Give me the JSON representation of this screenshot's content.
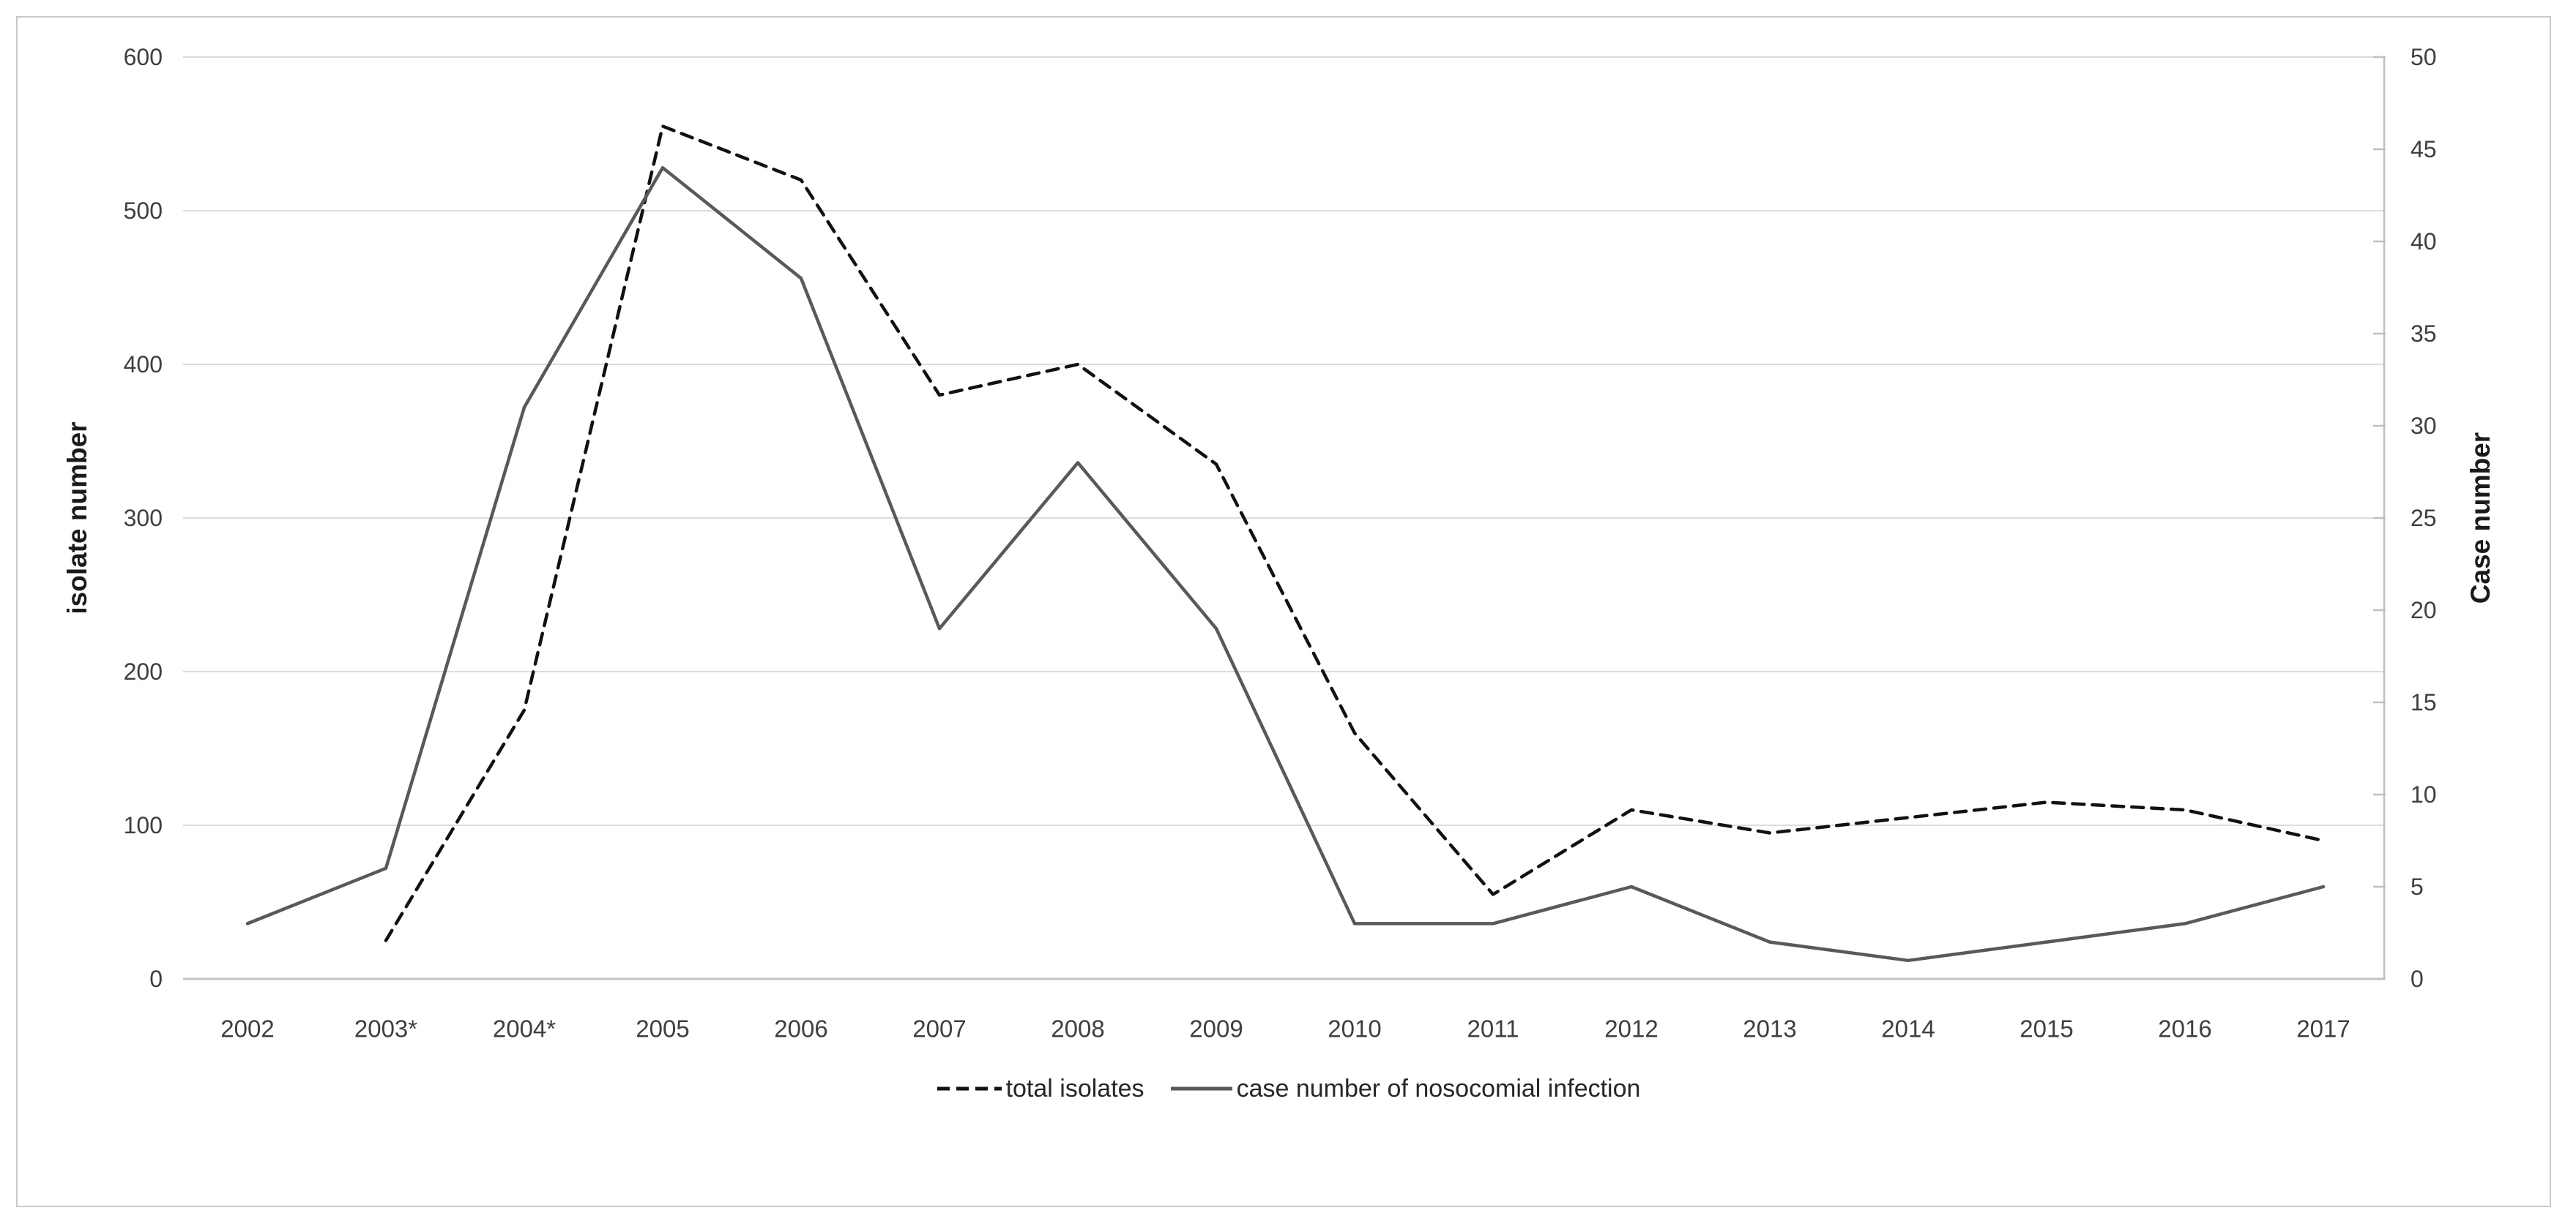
{
  "figure": {
    "legend": {
      "items": [
        {
          "label": "total isolates",
          "style": "dashed"
        },
        {
          "label": "case number of nosocomial infection",
          "style": "solid"
        }
      ]
    },
    "colors": {
      "dashed_series": "#111111",
      "solid_series": "#595959",
      "gridline": "#dcdcdc",
      "baseline": "#c4c4c4",
      "axis_line": "#bfbfbf",
      "tick_text": "#3f3f3f",
      "border": "#c9c9c9"
    }
  },
  "chart_data": {
    "type": "line",
    "categories": [
      "2002",
      "2003*",
      "2004*",
      "2005",
      "2006",
      "2007",
      "2008",
      "2009",
      "2010",
      "2011",
      "2012",
      "2013",
      "2014",
      "2015",
      "2016",
      "2017"
    ],
    "series": [
      {
        "name": "total isolates",
        "axis": "left",
        "style": "dashed",
        "color": "#111111",
        "values": [
          null,
          25,
          175,
          555,
          520,
          380,
          400,
          335,
          160,
          55,
          110,
          95,
          105,
          115,
          110,
          90
        ]
      },
      {
        "name": "case number of nosocomial infection",
        "axis": "right",
        "style": "solid",
        "color": "#595959",
        "values": [
          3,
          6,
          31,
          44,
          38,
          19,
          28,
          19,
          3,
          3,
          5,
          2,
          1,
          2,
          3,
          5
        ]
      }
    ],
    "left_axis": {
      "title": "isolate number",
      "min": 0,
      "max": 600,
      "step": 100,
      "ticks": [
        0,
        100,
        200,
        300,
        400,
        500,
        600
      ]
    },
    "right_axis": {
      "title": "Case number",
      "min": 0,
      "max": 50,
      "step": 5,
      "ticks": [
        0,
        5,
        10,
        15,
        20,
        25,
        30,
        35,
        40,
        45,
        50
      ]
    },
    "grid": "horizontal-only",
    "legend_position": "bottom-center"
  }
}
